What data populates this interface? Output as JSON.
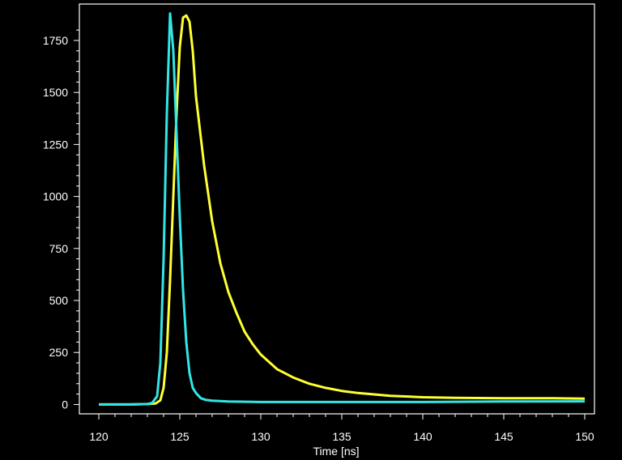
{
  "chart_data": {
    "type": "line",
    "title": "",
    "xlabel": "Time [ns]",
    "ylabel": "",
    "xlim": [
      118.8,
      150.6
    ],
    "ylim": [
      -45,
      1925
    ],
    "x_ticks": [
      120,
      125,
      130,
      135,
      140,
      145,
      150
    ],
    "x_tick_labels": [
      "120",
      "125",
      "130",
      "135",
      "140",
      "145",
      "150"
    ],
    "y_ticks": [
      0,
      250,
      500,
      750,
      1000,
      1250,
      1500,
      1750
    ],
    "y_tick_labels": [
      "0",
      "250",
      "500",
      "750",
      "1000",
      "1250",
      "1500",
      "1750"
    ],
    "grid": false,
    "legend": "none",
    "background": "#000000",
    "axis_color": "#ffffff",
    "series": [
      {
        "color": "#ffff33",
        "x": [
          120,
          121,
          122,
          123,
          123.5,
          123.8,
          124,
          124.2,
          124.4,
          124.6,
          124.8,
          125,
          125.2,
          125.4,
          125.6,
          125.8,
          126,
          126.5,
          127,
          127.5,
          128,
          128.5,
          129,
          129.5,
          130,
          131,
          132,
          133,
          134,
          135,
          136,
          138,
          140,
          142,
          145,
          148,
          150
        ],
        "y": [
          0,
          0,
          0,
          2,
          5,
          20,
          80,
          250,
          600,
          1000,
          1400,
          1720,
          1860,
          1870,
          1840,
          1700,
          1480,
          1150,
          880,
          680,
          540,
          440,
          350,
          290,
          240,
          170,
          130,
          100,
          80,
          65,
          55,
          42,
          35,
          32,
          30,
          30,
          28
        ]
      },
      {
        "color": "#33e6e6",
        "x": [
          120,
          121,
          122,
          123,
          123.3,
          123.6,
          123.8,
          124,
          124.2,
          124.4,
          124.6,
          124.8,
          125,
          125.2,
          125.4,
          125.6,
          125.8,
          126,
          126.3,
          126.6,
          127,
          128,
          130,
          135,
          140,
          145,
          150
        ],
        "y": [
          0,
          0,
          0,
          2,
          8,
          40,
          200,
          700,
          1400,
          1880,
          1700,
          1300,
          900,
          550,
          300,
          150,
          80,
          55,
          30,
          22,
          18,
          14,
          12,
          12,
          12,
          14,
          15
        ]
      }
    ]
  }
}
